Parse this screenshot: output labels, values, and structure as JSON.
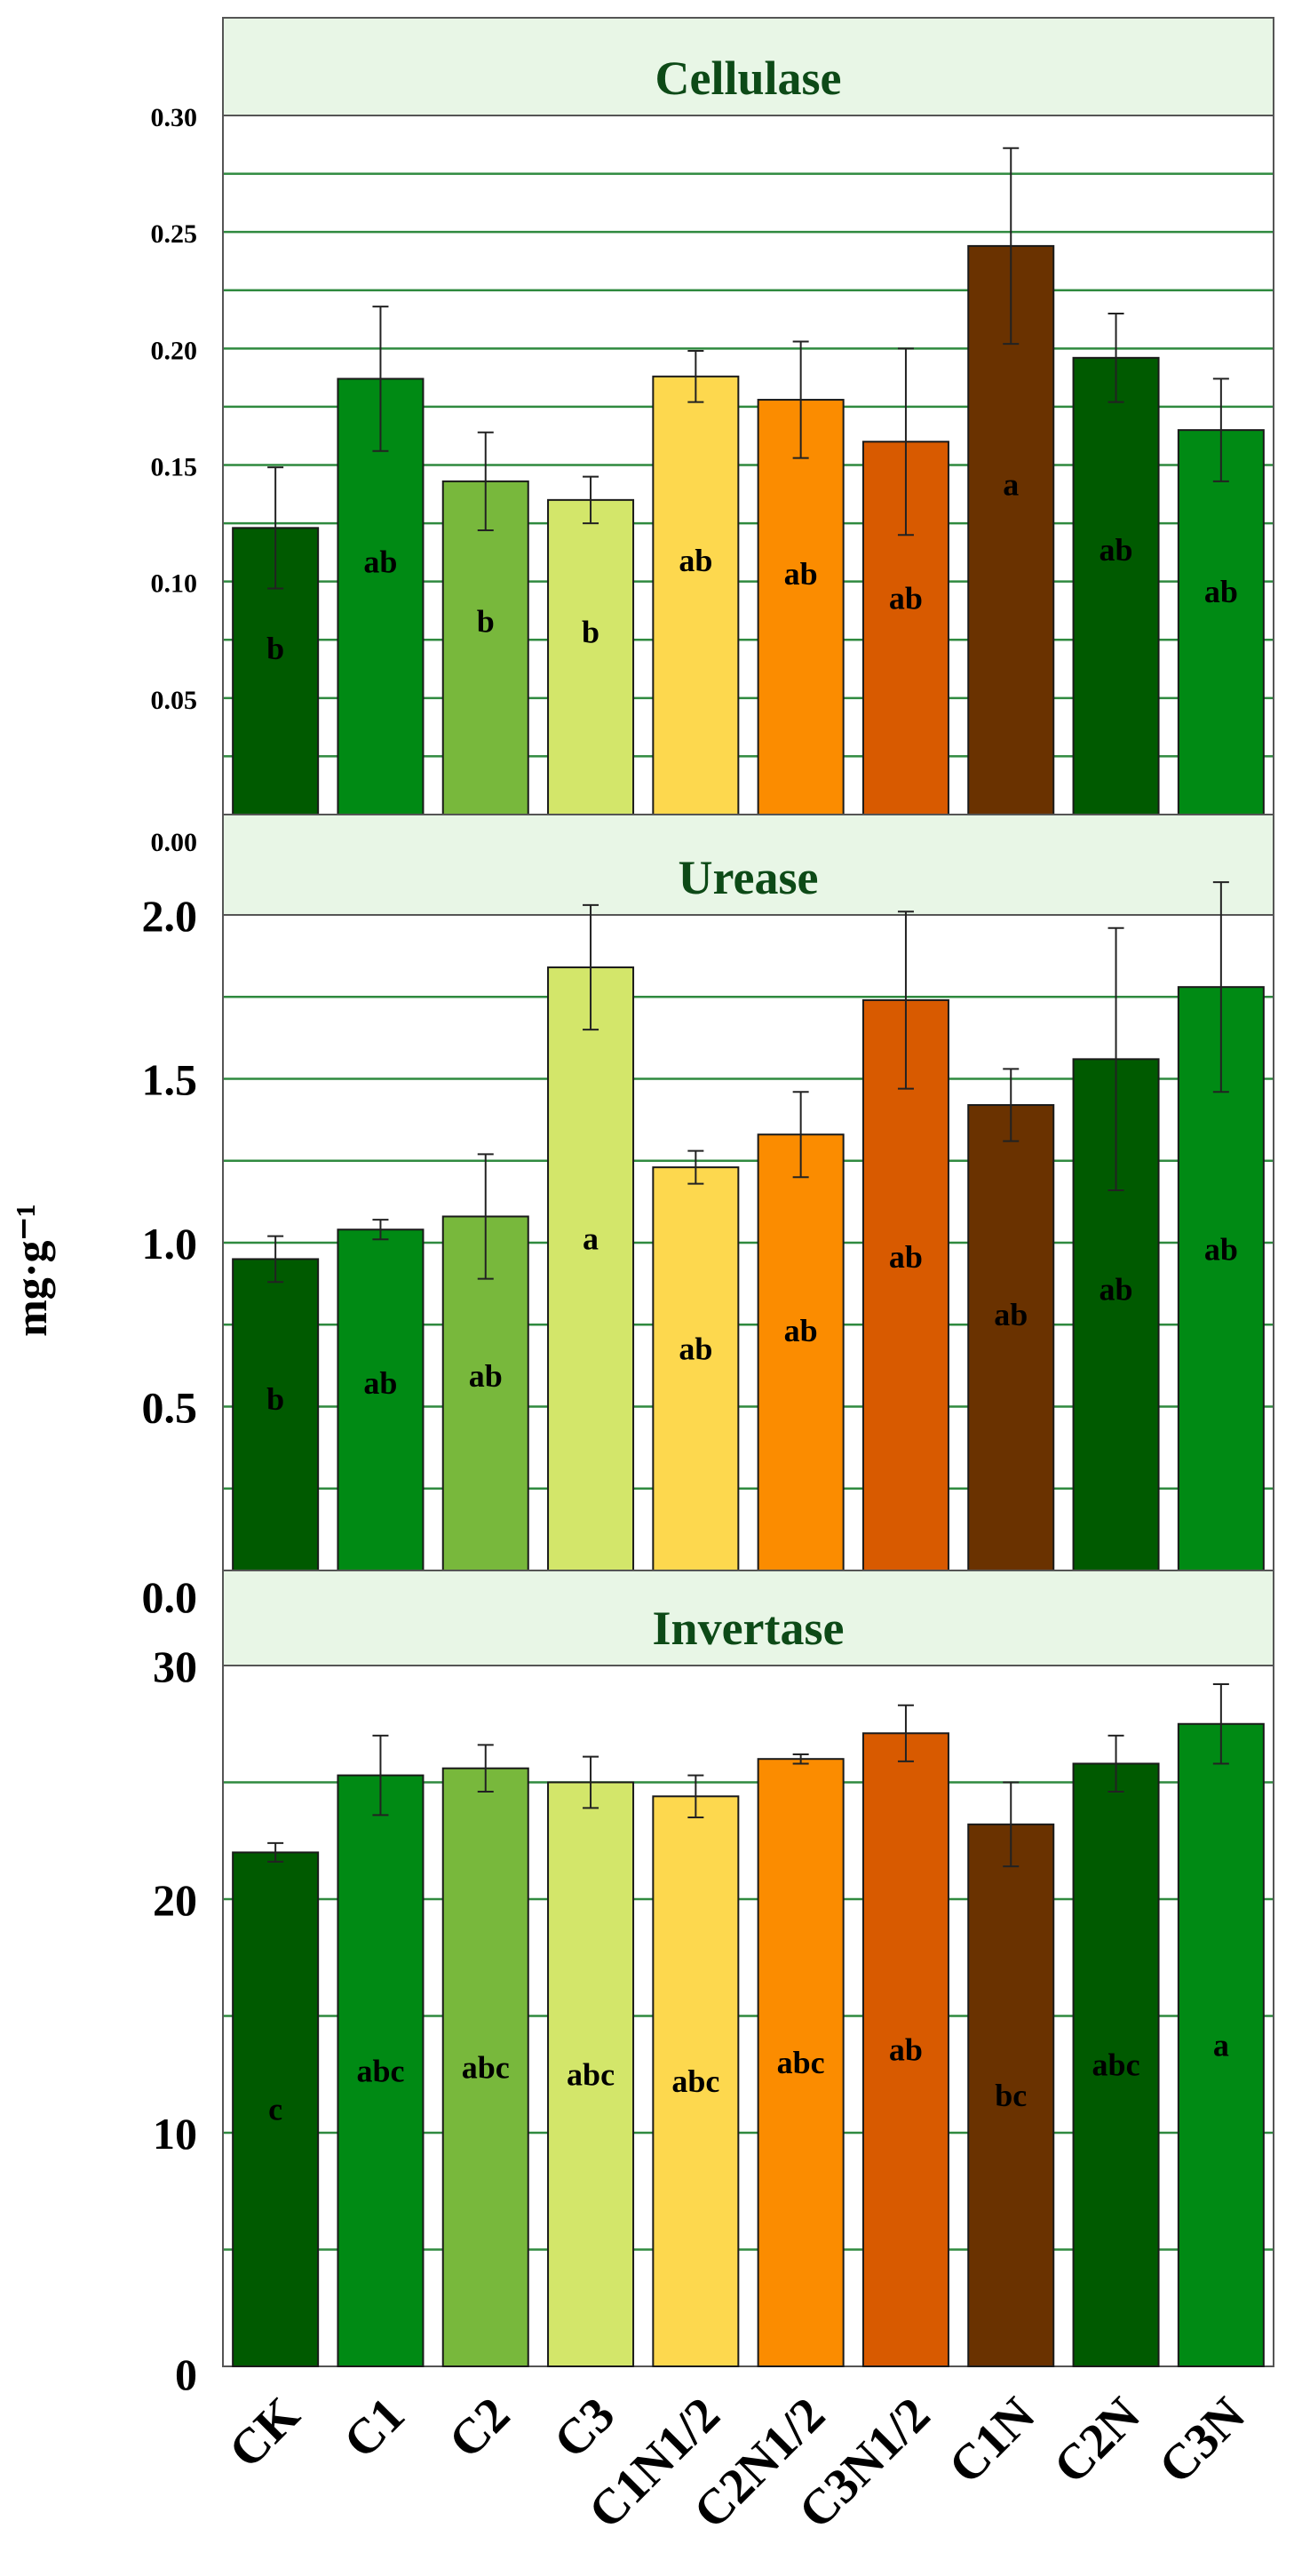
{
  "y_axis_label": "mg·g⁻¹",
  "categories": [
    "CK",
    "C1",
    "C2",
    "C3",
    "C1N1/2",
    "C2N1/2",
    "C3N1/2",
    "C1N",
    "C2N",
    "C3N"
  ],
  "bar_colors": [
    "#005a00",
    "#008a14",
    "#78b83c",
    "#d3e66a",
    "#fdd84e",
    "#fb8c00",
    "#d85a00",
    "#6a3200",
    "#005a00",
    "#008a14"
  ],
  "chart_data": [
    {
      "type": "bar",
      "title": "Cellulase",
      "ylim": [
        0,
        0.3
      ],
      "yticks": [
        "0.00",
        "0.05",
        "0.10",
        "0.15",
        "0.20",
        "0.25",
        "0.30"
      ],
      "values": [
        0.123,
        0.187,
        0.143,
        0.135,
        0.188,
        0.178,
        0.16,
        0.244,
        0.196,
        0.165
      ],
      "errors": [
        0.026,
        0.031,
        0.021,
        0.01,
        0.011,
        0.025,
        0.04,
        0.042,
        0.019,
        0.022
      ],
      "letters": [
        "b",
        "ab",
        "b",
        "b",
        "ab",
        "ab",
        "ab",
        "a",
        "ab",
        "ab"
      ]
    },
    {
      "type": "bar",
      "title": "Urease",
      "ylim": [
        0,
        2.0
      ],
      "yticks": [
        "0.0",
        "0.5",
        "1.0",
        "1.5",
        "2.0"
      ],
      "values": [
        0.95,
        1.04,
        1.08,
        1.84,
        1.23,
        1.33,
        1.74,
        1.42,
        1.56,
        1.78
      ],
      "errors": [
        0.07,
        0.03,
        0.19,
        0.19,
        0.05,
        0.13,
        0.27,
        0.11,
        0.4,
        0.32
      ],
      "letters": [
        "b",
        "ab",
        "ab",
        "a",
        "ab",
        "ab",
        "ab",
        "ab",
        "ab",
        "ab"
      ]
    },
    {
      "type": "bar",
      "title": "Invertase",
      "ylim": [
        0,
        30
      ],
      "yticks": [
        "0",
        "10",
        "20",
        "30"
      ],
      "values": [
        22,
        25.3,
        25.6,
        25,
        24.4,
        26,
        27.1,
        23.2,
        25.8,
        27.5
      ],
      "errors": [
        0.4,
        1.7,
        1.0,
        1.1,
        0.9,
        0.2,
        1.2,
        1.8,
        1.2,
        1.7
      ],
      "letters": [
        "c",
        "abc",
        "abc",
        "abc",
        "abc",
        "abc",
        "ab",
        "bc",
        "abc",
        "a"
      ]
    }
  ]
}
